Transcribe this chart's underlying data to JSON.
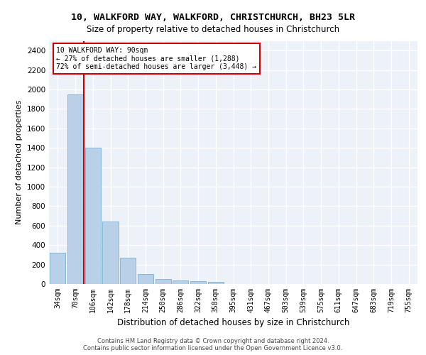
{
  "title1": "10, WALKFORD WAY, WALKFORD, CHRISTCHURCH, BH23 5LR",
  "title2": "Size of property relative to detached houses in Christchurch",
  "xlabel": "Distribution of detached houses by size in Christchurch",
  "ylabel": "Number of detached properties",
  "bar_color": "#b8d0e8",
  "bar_edge_color": "#7aafd4",
  "categories": [
    "34sqm",
    "70sqm",
    "106sqm",
    "142sqm",
    "178sqm",
    "214sqm",
    "250sqm",
    "286sqm",
    "322sqm",
    "358sqm",
    "395sqm",
    "431sqm",
    "467sqm",
    "503sqm",
    "539sqm",
    "575sqm",
    "611sqm",
    "647sqm",
    "683sqm",
    "719sqm",
    "755sqm"
  ],
  "values": [
    320,
    1950,
    1400,
    640,
    270,
    100,
    48,
    38,
    30,
    20,
    0,
    0,
    0,
    0,
    0,
    0,
    0,
    0,
    0,
    0,
    0
  ],
  "ylim": [
    0,
    2500
  ],
  "yticks": [
    0,
    200,
    400,
    600,
    800,
    1000,
    1200,
    1400,
    1600,
    1800,
    2000,
    2200,
    2400
  ],
  "property_line_label": "10 WALKFORD WAY: 90sqm",
  "annotation_line2": "← 27% of detached houses are smaller (1,288)",
  "annotation_line3": "72% of semi-detached houses are larger (3,448) →",
  "annotation_box_color": "#ffffff",
  "annotation_box_edge": "#cc0000",
  "vline_color": "#cc0000",
  "background_color": "#edf2f9",
  "grid_color": "#ffffff",
  "footer1": "Contains HM Land Registry data © Crown copyright and database right 2024.",
  "footer2": "Contains public sector information licensed under the Open Government Licence v3.0."
}
